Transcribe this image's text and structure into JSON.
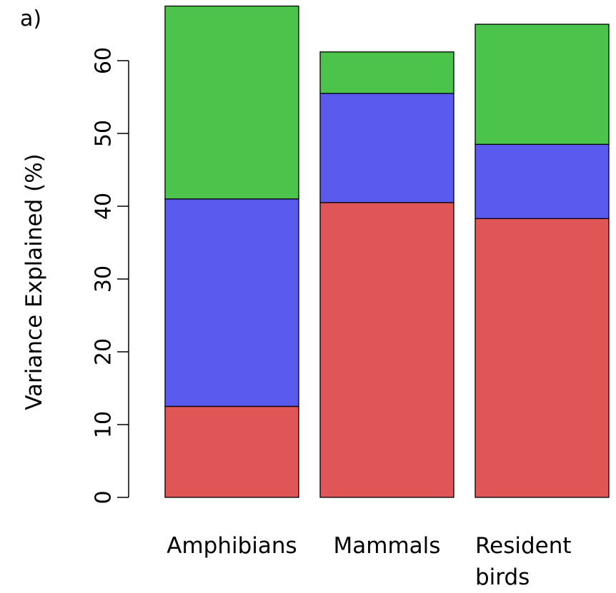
{
  "chart_data": {
    "type": "bar",
    "stacked": true,
    "panel_label": "a)",
    "title": "",
    "xlabel": "",
    "ylabel": "Variance Explained (%)",
    "ylim": [
      0,
      67
    ],
    "yticks": [
      0,
      10,
      20,
      30,
      40,
      50,
      60
    ],
    "grid": false,
    "categories": [
      [
        "Amphibians"
      ],
      [
        "Mammals"
      ],
      [
        "Resident",
        "birds"
      ]
    ],
    "series": [
      {
        "color": "#e05555",
        "values": [
          12.5,
          40.5,
          38.3
        ]
      },
      {
        "color": "#5a5aee",
        "values": [
          28.5,
          15.0,
          10.2
        ]
      },
      {
        "color": "#4cc44c",
        "values": [
          26.5,
          5.7,
          16.5
        ]
      }
    ]
  }
}
